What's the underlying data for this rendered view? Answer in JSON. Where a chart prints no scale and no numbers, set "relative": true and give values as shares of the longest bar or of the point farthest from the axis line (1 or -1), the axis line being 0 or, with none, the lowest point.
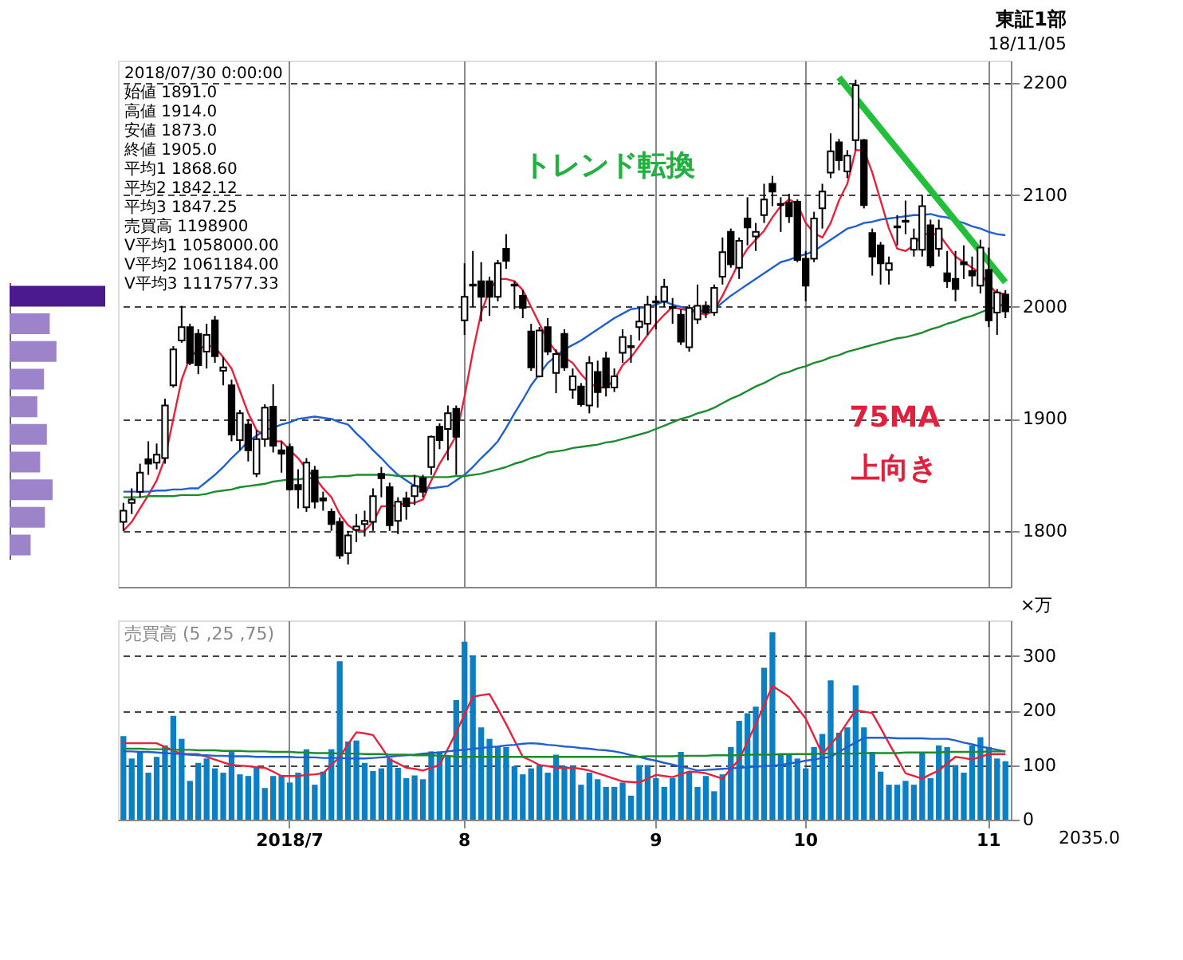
{
  "chart_data": [
    {
      "type": "candlestick",
      "title": "東証1部",
      "subtitle": "18/11/05",
      "categories": [
        null,
        null,
        null,
        null,
        null,
        null,
        null,
        null,
        null,
        null,
        null,
        null,
        null,
        null,
        null,
        null,
        null,
        null,
        null,
        null,
        "2018/7",
        null,
        null,
        null,
        null,
        null,
        null,
        null,
        null,
        null,
        null,
        null,
        null,
        null,
        null,
        null,
        null,
        null,
        null,
        null,
        null,
        "8",
        null,
        null,
        null,
        null,
        null,
        null,
        null,
        null,
        null,
        null,
        null,
        null,
        null,
        null,
        null,
        null,
        null,
        null,
        null,
        null,
        null,
        null,
        "9",
        null,
        null,
        null,
        null,
        null,
        null,
        null,
        null,
        null,
        null,
        null,
        null,
        null,
        null,
        null,
        null,
        null,
        "10",
        null,
        null,
        null,
        null,
        null,
        null,
        null,
        null,
        null,
        null,
        null,
        null,
        null,
        null,
        null,
        null,
        null,
        null,
        null,
        null,
        null,
        "11",
        null,
        null
      ],
      "ohlc": [
        [
          1808,
          1825,
          1800,
          1818
        ],
        [
          1825,
          1838,
          1815,
          1828
        ],
        [
          1835,
          1860,
          1830,
          1852
        ],
        [
          1864,
          1880,
          1850,
          1860
        ],
        [
          1861,
          1878,
          1855,
          1868
        ],
        [
          1865,
          1918,
          1860,
          1912
        ],
        [
          1930,
          1965,
          1928,
          1962
        ],
        [
          1970,
          2001,
          1968,
          1982
        ],
        [
          1982,
          1985,
          1948,
          1950
        ],
        [
          1976,
          1980,
          1940,
          1948
        ],
        [
          1960,
          1985,
          1945,
          1975
        ],
        [
          1988,
          1992,
          1950,
          1956
        ],
        [
          1943,
          1955,
          1930,
          1946
        ],
        [
          1930,
          1935,
          1880,
          1886
        ],
        [
          1881,
          1908,
          1872,
          1905
        ],
        [
          1895,
          1900,
          1862,
          1872
        ],
        [
          1851,
          1890,
          1848,
          1882
        ],
        [
          1882,
          1913,
          1875,
          1910
        ],
        [
          1911,
          1931,
          1870,
          1876
        ],
        [
          1872,
          1880,
          1852,
          1869
        ],
        [
          1875,
          1878,
          1836,
          1837
        ],
        [
          1841,
          1855,
          1820,
          1837
        ],
        [
          1821,
          1865,
          1817,
          1861
        ],
        [
          1854,
          1858,
          1820,
          1826
        ],
        [
          1829,
          1835,
          1818,
          1827
        ],
        [
          1817,
          1820,
          1800,
          1806
        ],
        [
          1808,
          1812,
          1775,
          1778
        ],
        [
          1780,
          1800,
          1770,
          1796
        ],
        [
          1801,
          1815,
          1790,
          1804
        ],
        [
          1806,
          1818,
          1795,
          1809
        ],
        [
          1808,
          1838,
          1800,
          1831
        ],
        [
          1851,
          1857,
          1830,
          1847
        ],
        [
          1839,
          1843,
          1800,
          1805
        ],
        [
          1809,
          1830,
          1797,
          1826
        ],
        [
          1829,
          1835,
          1810,
          1822
        ],
        [
          1831,
          1850,
          1823,
          1840
        ],
        [
          1847,
          1850,
          1830,
          1835
        ],
        [
          1857,
          1885,
          1850,
          1884
        ],
        [
          1893,
          1896,
          1873,
          1881
        ],
        [
          1891,
          1912,
          1863,
          1905
        ],
        [
          1909,
          1912,
          1850,
          1884
        ],
        [
          1988,
          2039,
          1975,
          2009
        ],
        [
          2020,
          2050,
          2000,
          2019
        ],
        [
          2023,
          2040,
          1987,
          2009
        ],
        [
          2023,
          2027,
          1992,
          2009
        ],
        [
          2009,
          2042,
          2005,
          2039
        ],
        [
          2052,
          2065,
          2034,
          2041
        ],
        [
          2020,
          2023,
          1998,
          2019
        ],
        [
          2010,
          2015,
          1990,
          1999
        ],
        [
          1978,
          1985,
          1943,
          1946
        ],
        [
          1938,
          1982,
          1937,
          1979
        ],
        [
          1982,
          1990,
          1957,
          1960
        ],
        [
          1941,
          1962,
          1923,
          1958
        ],
        [
          1976,
          1980,
          1943,
          1946
        ],
        [
          1926,
          1945,
          1918,
          1938
        ],
        [
          1929,
          1932,
          1911,
          1913
        ],
        [
          1912,
          1956,
          1905,
          1950
        ],
        [
          1942,
          1952,
          1910,
          1924
        ],
        [
          1954,
          1960,
          1920,
          1928
        ],
        [
          1928,
          1945,
          1924,
          1938
        ],
        [
          1959,
          1980,
          1950,
          1973
        ],
        [
          1965,
          1975,
          1950,
          1964
        ],
        [
          1982,
          2000,
          1970,
          1987
        ],
        [
          1985,
          2010,
          1975,
          2002
        ],
        [
          2005,
          2010,
          1980,
          2004
        ],
        [
          2005,
          2025,
          2000,
          2018
        ],
        [
          2000,
          2008,
          1985,
          1999
        ],
        [
          1993,
          1998,
          1966,
          1969
        ],
        [
          1964,
          2002,
          1960,
          1999
        ],
        [
          1989,
          2020,
          1985,
          2001
        ],
        [
          2001,
          2005,
          1990,
          1995
        ],
        [
          1995,
          2020,
          1992,
          2017
        ],
        [
          2027,
          2062,
          2020,
          2049
        ],
        [
          2067,
          2070,
          2035,
          2038
        ],
        [
          2035,
          2062,
          2025,
          2059
        ],
        [
          2079,
          2098,
          2055,
          2071
        ],
        [
          2063,
          2075,
          2050,
          2067
        ],
        [
          2082,
          2110,
          2075,
          2096
        ],
        [
          2110,
          2117,
          2090,
          2103
        ],
        [
          2092,
          2098,
          2067,
          2091
        ],
        [
          2093,
          2101,
          2075,
          2081
        ],
        [
          2094,
          2096,
          2040,
          2042
        ],
        [
          2043,
          2050,
          2005,
          2019
        ],
        [
          2043,
          2085,
          2040,
          2079
        ],
        [
          2088,
          2110,
          2070,
          2103
        ],
        [
          2120,
          2155,
          2115,
          2139
        ],
        [
          2147,
          2150,
          2122,
          2131
        ],
        [
          2121,
          2140,
          2115,
          2135
        ],
        [
          2149,
          2203,
          2140,
          2198
        ],
        [
          2149,
          2150,
          2088,
          2091
        ],
        [
          2066,
          2070,
          2028,
          2045
        ],
        [
          2055,
          2058,
          2020,
          2039
        ],
        [
          2033,
          2045,
          2020,
          2039
        ],
        [
          2072,
          2082,
          2055,
          2071
        ],
        [
          2077,
          2095,
          2065,
          2076
        ],
        [
          2051,
          2070,
          2045,
          2061
        ],
        [
          2051,
          2100,
          2045,
          2090
        ],
        [
          2073,
          2078,
          2035,
          2037
        ],
        [
          2052,
          2078,
          2045,
          2070
        ],
        [
          2030,
          2050,
          2017,
          2023
        ],
        [
          2025,
          2050,
          2005,
          2016
        ],
        [
          2040,
          2055,
          2025,
          2038
        ],
        [
          2032,
          2045,
          2018,
          2028
        ],
        [
          2019,
          2060,
          2012,
          2053
        ],
        [
          2033,
          2053,
          1982,
          1988
        ],
        [
          1995,
          2016,
          1975,
          2013
        ],
        [
          2011,
          2015,
          1990,
          1996
        ]
      ],
      "series": [
        {
          "type": "line",
          "color": "#e8203c",
          "values": [
            1800,
            1808,
            1820,
            1832,
            1845,
            1865,
            1900,
            1935,
            1955,
            1962,
            1966,
            1964,
            1955,
            1945,
            1925,
            1905,
            1890,
            1885,
            1880,
            1880,
            1872,
            1865,
            1855,
            1848,
            1838,
            1830,
            1815,
            1805,
            1800,
            1800,
            1808,
            1822,
            1822,
            1823,
            1825,
            1825,
            1828,
            1845,
            1860,
            1872,
            1885,
            1920,
            1960,
            1995,
            2015,
            2025,
            2025,
            2023,
            2015,
            2000,
            1985,
            1970,
            1960,
            1955,
            1950,
            1940,
            1932,
            1928,
            1928,
            1935,
            1948,
            1955,
            1965,
            1975,
            1985,
            1993,
            2000,
            1998,
            1997,
            1995,
            1993,
            1997,
            2010,
            2025,
            2040,
            2052,
            2060,
            2068,
            2080,
            2090,
            2096,
            2092,
            2075,
            2066,
            2062,
            2075,
            2095,
            2110,
            2140,
            2140,
            2120,
            2095,
            2070,
            2052,
            2050,
            2055,
            2065,
            2065,
            2065,
            2055,
            2045,
            2040,
            2035,
            2030,
            2020,
            2012,
            2012
          ]
        },
        {
          "type": "line",
          "color": "#1f5fd0",
          "values": [
            1835,
            1835,
            1835,
            1835,
            1836,
            1836,
            1837,
            1837,
            1838,
            1838,
            1844,
            1850,
            1857,
            1865,
            1872,
            1880,
            1885,
            1890,
            1892,
            1895,
            1897,
            1900,
            1901,
            1902,
            1901,
            1900,
            1897,
            1895,
            1887,
            1880,
            1872,
            1865,
            1857,
            1850,
            1845,
            1840,
            1839,
            1838,
            1839,
            1840,
            1845,
            1850,
            1857,
            1865,
            1872,
            1880,
            1892,
            1905,
            1917,
            1930,
            1940,
            1950,
            1956,
            1962,
            1966,
            1970,
            1975,
            1980,
            1985,
            1990,
            1994,
            1998,
            1999,
            2000,
            2002,
            2005,
            2002,
            2000,
            1998,
            1996,
            1997,
            1998,
            2004,
            2010,
            2015,
            2020,
            2025,
            2030,
            2035,
            2040,
            2042,
            2045,
            2047,
            2050,
            2055,
            2060,
            2065,
            2070,
            2072,
            2075,
            2076,
            2078,
            2079,
            2080,
            2081,
            2082,
            2082,
            2083,
            2081,
            2080,
            2077,
            2075,
            2072,
            2070,
            2067,
            2065,
            2064
          ]
        },
        {
          "type": "line",
          "color": "#1e8a2e",
          "values": [
            1830,
            1830,
            1830,
            1831,
            1831,
            1831,
            1831,
            1832,
            1832,
            1832,
            1833,
            1835,
            1836,
            1837,
            1839,
            1840,
            1841,
            1842,
            1844,
            1845,
            1846,
            1846,
            1847,
            1847,
            1848,
            1848,
            1849,
            1849,
            1850,
            1850,
            1850,
            1850,
            1850,
            1849,
            1849,
            1849,
            1848,
            1848,
            1848,
            1848,
            1849,
            1849,
            1850,
            1851,
            1853,
            1855,
            1857,
            1860,
            1862,
            1865,
            1867,
            1870,
            1871,
            1872,
            1874,
            1875,
            1876,
            1877,
            1879,
            1880,
            1882,
            1884,
            1886,
            1888,
            1891,
            1894,
            1897,
            1900,
            1902,
            1905,
            1907,
            1910,
            1914,
            1918,
            1921,
            1925,
            1929,
            1932,
            1936,
            1940,
            1942,
            1945,
            1947,
            1950,
            1952,
            1955,
            1957,
            1960,
            1962,
            1964,
            1966,
            1968,
            1970,
            1972,
            1973,
            1975,
            1977,
            1980,
            1982,
            1985,
            1987,
            1990,
            1992,
            1995,
            1998,
            2000,
            2003
          ]
        },
        {
          "type": "line",
          "color": "#22c03a",
          "values": [
            null,
            null,
            null,
            null,
            null,
            null,
            null,
            null,
            null,
            null,
            null,
            null,
            null,
            null,
            null,
            null,
            null,
            null,
            null,
            null,
            null,
            null,
            null,
            null,
            null,
            null,
            null,
            null,
            null,
            null,
            null,
            null,
            null,
            null,
            null,
            null,
            null,
            null,
            null,
            null,
            null,
            null,
            null,
            null,
            null,
            null,
            null,
            null,
            null,
            null,
            null,
            null,
            null,
            null,
            null,
            null,
            null,
            null,
            null,
            null,
            null,
            null,
            null,
            null,
            null,
            null,
            null,
            null,
            null,
            null,
            null,
            null,
            null,
            null,
            null,
            null,
            null,
            null,
            null,
            null,
            null,
            null,
            null,
            null,
            null,
            null,
            2205,
            null,
            null,
            null,
            null,
            null,
            null,
            null,
            null,
            null,
            null,
            null,
            null,
            null,
            null,
            null,
            null,
            null,
            null,
            null,
            2022
          ]
        }
      ],
      "ylim": [
        1750,
        2220
      ],
      "yticks": [
        1800,
        1900,
        2000,
        2100,
        2200
      ],
      "grid": true,
      "tick_labels": "y",
      "annotations": [
        "2018/07/30 0:00:00",
        "始値 1891.0",
        "高値 1914.0",
        "安値 1873.0",
        "終値 1905.0",
        "平均1 1868.60",
        "平均2 1842.12",
        "平均3 1847.25",
        "売買高 1198900",
        "V平均1 1058000.00",
        "V平均2 1061184.00",
        "V平均3 1117577.33",
        "トレンド転換",
        "75MA",
        "上向き"
      ]
    },
    {
      "type": "bar",
      "title": "売買高 (5 ,25 ,75)",
      "ylabel": "×万",
      "categories": [
        null,
        null,
        null,
        null,
        null,
        null,
        null,
        null,
        null,
        null,
        null,
        null,
        null,
        null,
        null,
        null,
        null,
        null,
        null,
        null,
        "2018/7",
        null,
        null,
        null,
        null,
        null,
        null,
        null,
        null,
        null,
        null,
        null,
        null,
        null,
        null,
        null,
        null,
        null,
        null,
        null,
        null,
        "8",
        null,
        null,
        null,
        null,
        null,
        null,
        null,
        null,
        null,
        null,
        null,
        null,
        null,
        null,
        null,
        null,
        null,
        null,
        null,
        null,
        null,
        null,
        "9",
        null,
        null,
        null,
        null,
        null,
        null,
        null,
        null,
        null,
        null,
        null,
        null,
        null,
        null,
        null,
        null,
        null,
        "10",
        null,
        null,
        null,
        null,
        null,
        null,
        null,
        null,
        null,
        null,
        null,
        null,
        null,
        null,
        null,
        null,
        null,
        null,
        null,
        null,
        null,
        "11",
        null,
        null
      ],
      "series": [
        {
          "type": "bar",
          "color": "#0a7fc4",
          "values": [
            153,
            112,
            124,
            86,
            115,
            136,
            190,
            148,
            71,
            104,
            112,
            94,
            86,
            124,
            83,
            80,
            95,
            58,
            80,
            81,
            68,
            86,
            129,
            64,
            88,
            129,
            290,
            143,
            145,
            104,
            89,
            94,
            112,
            95,
            76,
            81,
            74,
            125,
            125,
            118,
            219,
            326,
            300,
            169,
            148,
            133,
            133,
            98,
            83,
            94,
            100,
            86,
            119,
            98,
            98,
            64,
            86,
            74,
            60,
            60,
            68,
            44,
            100,
            100,
            76,
            60,
            76,
            124,
            88,
            60,
            80,
            52,
            83,
            133,
            181,
            195,
            207,
            278,
            343,
            121,
            121,
            112,
            94,
            133,
            157,
            255,
            159,
            169,
            246,
            169,
            124,
            88,
            64,
            64,
            71,
            64,
            124,
            76,
            136,
            133,
            100,
            86,
            136,
            151,
            133,
            112,
            107
          ]
        },
        {
          "type": "line",
          "color": "#e8203c",
          "values": [
            140,
            140,
            140,
            140,
            140,
            133,
            127,
            120,
            120,
            120,
            115,
            110,
            105,
            100,
            99,
            98,
            96,
            95,
            88,
            80,
            80,
            80,
            82,
            83,
            85,
            100,
            115,
            138,
            160,
            158,
            155,
            133,
            110,
            103,
            95,
            93,
            90,
            95,
            100,
            130,
            160,
            193,
            225,
            228,
            230,
            203,
            175,
            145,
            115,
            108,
            100,
            98,
            95,
            95,
            95,
            93,
            90,
            85,
            80,
            75,
            70,
            69,
            68,
            75,
            82,
            80,
            78,
            83,
            88,
            87,
            85,
            80,
            75,
            93,
            110,
            143,
            175,
            210,
            245,
            235,
            225,
            205,
            185,
            153,
            120,
            138,
            155,
            178,
            200,
            198,
            195,
            168,
            140,
            113,
            85,
            80,
            75,
            83,
            90,
            103,
            115,
            113,
            110,
            115,
            120,
            120,
            120
          ]
        },
        {
          "type": "line",
          "color": "#1f5fd0",
          "values": [
            125,
            125,
            124,
            124,
            123,
            122,
            121,
            120,
            119,
            118,
            118,
            117,
            117,
            116,
            116,
            116,
            115,
            115,
            115,
            115,
            115,
            114,
            114,
            114,
            113,
            113,
            113,
            112,
            112,
            112,
            113,
            114,
            115,
            117,
            118,
            119,
            121,
            122,
            123,
            125,
            127,
            128,
            130,
            131,
            133,
            134,
            136,
            137,
            139,
            140,
            139,
            137,
            136,
            134,
            133,
            131,
            130,
            128,
            127,
            125,
            122,
            118,
            115,
            111,
            108,
            104,
            101,
            97,
            94,
            90,
            91,
            92,
            93,
            94,
            95,
            96,
            97,
            98,
            99,
            100,
            103,
            105,
            108,
            110,
            113,
            115,
            124,
            133,
            141,
            150,
            150,
            150,
            150,
            149,
            149,
            149,
            149,
            148,
            148,
            148,
            145,
            141,
            138,
            134,
            131,
            128,
            125
          ]
        },
        {
          "type": "line",
          "color": "#1e8a2e",
          "values": [
            130,
            130,
            130,
            129,
            129,
            129,
            128,
            128,
            128,
            127,
            127,
            127,
            126,
            126,
            126,
            125,
            125,
            125,
            124,
            124,
            124,
            123,
            123,
            122,
            122,
            122,
            121,
            121,
            121,
            120,
            120,
            120,
            119,
            119,
            119,
            118,
            118,
            118,
            117,
            117,
            115,
            115,
            115,
            115,
            115,
            115,
            115,
            115,
            115,
            115,
            115,
            115,
            115,
            115,
            115,
            115,
            115,
            115,
            115,
            115,
            115,
            115,
            115,
            116,
            116,
            116,
            116,
            117,
            117,
            117,
            117,
            118,
            118,
            118,
            118,
            119,
            119,
            119,
            119,
            120,
            120,
            120,
            120,
            120,
            121,
            121,
            121,
            121,
            121,
            122,
            122,
            122,
            122,
            122,
            123,
            123,
            123,
            123,
            123,
            124,
            124,
            124,
            124,
            124,
            125,
            125,
            125
          ]
        }
      ],
      "ylim": [
        0,
        365
      ],
      "yticks": [
        0,
        100,
        200,
        300
      ],
      "grid": true,
      "annotations": [
        "2035.0"
      ]
    },
    {
      "type": "bar",
      "orientation": "horizontal",
      "relative": true,
      "categories": [
        null,
        null,
        null,
        null,
        null,
        null,
        null,
        null,
        null,
        null
      ],
      "values": [
        1.0,
        0.42,
        0.49,
        0.36,
        0.29,
        0.39,
        0.32,
        0.45,
        0.37,
        0.22
      ],
      "colors": [
        "#4b1a8c",
        "#9d83c9",
        "#9d83c9",
        "#9d83c9",
        "#9d83c9",
        "#9d83c9",
        "#9d83c9",
        "#9d83c9",
        "#9d83c9",
        "#9d83c9"
      ]
    }
  ]
}
